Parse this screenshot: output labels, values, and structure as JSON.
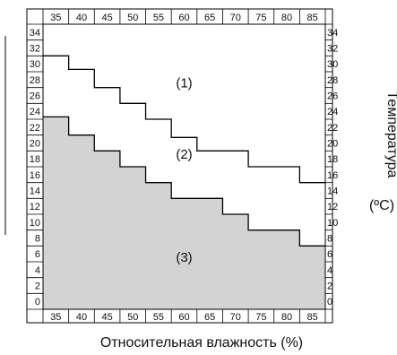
{
  "chart_data": {
    "type": "area",
    "xlabel": "Относительная влажность (%)",
    "ylabel": "Температура",
    "ylabel_unit": "(ºC)",
    "x_ticks": [
      35,
      40,
      45,
      50,
      55,
      60,
      65,
      70,
      75,
      80,
      85
    ],
    "y_ticks": [
      0,
      2,
      4,
      6,
      8,
      10,
      12,
      14,
      16,
      18,
      20,
      22,
      24,
      26,
      28,
      30,
      32,
      34
    ],
    "xlim": [
      32.5,
      87.5
    ],
    "ylim": [
      -1,
      35
    ],
    "upper_boundary": {
      "x": [
        32.5,
        37.5,
        37.5,
        42.5,
        42.5,
        47.5,
        47.5,
        52.5,
        52.5,
        57.5,
        57.5,
        62.5,
        62.5,
        72.5,
        72.5,
        82.5,
        82.5,
        87.5
      ],
      "y": [
        31,
        31,
        29.3,
        29.3,
        27,
        27,
        25,
        25,
        23,
        23,
        20.7,
        20.7,
        19,
        19,
        17,
        17,
        15,
        15
      ]
    },
    "lower_boundary": {
      "x": [
        32.5,
        37.5,
        37.5,
        42.5,
        42.5,
        47.5,
        47.5,
        52.5,
        52.5,
        57.5,
        57.5,
        67.5,
        67.5,
        72.5,
        72.5,
        82.5,
        82.5,
        87.5
      ],
      "y": [
        23.3,
        23.3,
        21,
        21,
        19,
        19,
        17,
        17,
        15,
        15,
        13,
        13,
        11,
        11,
        9,
        9,
        7,
        7
      ]
    },
    "regions": [
      {
        "label": "(1)",
        "x": 60,
        "y": 27
      },
      {
        "label": "(2)",
        "x": 60,
        "y": 18
      },
      {
        "label": "(3)",
        "x": 60,
        "y": 5
      }
    ],
    "fill_color": "#d3d3d3",
    "line_color": "#000000"
  }
}
